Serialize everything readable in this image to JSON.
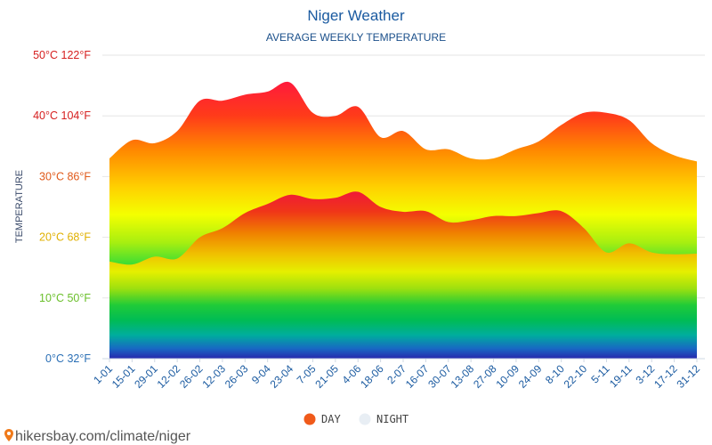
{
  "chart_data": {
    "type": "area",
    "title": "Niger Weather",
    "subtitle": "AVERAGE WEEKLY TEMPERATURE",
    "ylabel": "TEMPERATURE",
    "ylim": [
      0,
      50
    ],
    "yticks": [
      {
        "value": 0,
        "label": "0°C 32°F",
        "color": "#2a6fb5"
      },
      {
        "value": 10,
        "label": "10°C 50°F",
        "color": "#6abf2a"
      },
      {
        "value": 20,
        "label": "20°C 68°F",
        "color": "#e0b000"
      },
      {
        "value": 30,
        "label": "30°C 86°F",
        "color": "#e05a1a"
      },
      {
        "value": 40,
        "label": "40°C 104°F",
        "color": "#d62020"
      },
      {
        "value": 50,
        "label": "50°C 122°F",
        "color": "#d62020"
      }
    ],
    "categories": [
      "1-01",
      "15-01",
      "29-01",
      "12-02",
      "26-02",
      "12-03",
      "26-03",
      "9-04",
      "23-04",
      "7-05",
      "21-05",
      "4-06",
      "18-06",
      "2-07",
      "16-07",
      "30-07",
      "13-08",
      "27-08",
      "10-09",
      "24-09",
      "8-10",
      "22-10",
      "5-11",
      "19-11",
      "3-12",
      "17-12",
      "31-12"
    ],
    "series": [
      {
        "name": "DAY",
        "color": "#f05a1a",
        "values": [
          33,
          36,
          35.5,
          37.5,
          42.5,
          42.5,
          43.5,
          44,
          45.5,
          40.5,
          40,
          41.5,
          36.5,
          37.5,
          34.5,
          34.5,
          33,
          33,
          34.5,
          35.8,
          38.5,
          40.5,
          40.5,
          39.3,
          35.5,
          33.5,
          32.5
        ]
      },
      {
        "name": "NIGHT",
        "color": "#e8eef4",
        "values": [
          16,
          15.5,
          16.8,
          16.5,
          20,
          21.5,
          24,
          25.5,
          27,
          26.3,
          26.5,
          27.5,
          25,
          24.2,
          24.3,
          22.5,
          22.8,
          23.5,
          23.5,
          24,
          24.3,
          21.5,
          17.5,
          19,
          17.5,
          17.2,
          17.3
        ]
      }
    ],
    "legend": "bottom-center"
  },
  "footer": {
    "text": "hikersbay.com/climate/niger",
    "icon": "map-pin-icon"
  }
}
